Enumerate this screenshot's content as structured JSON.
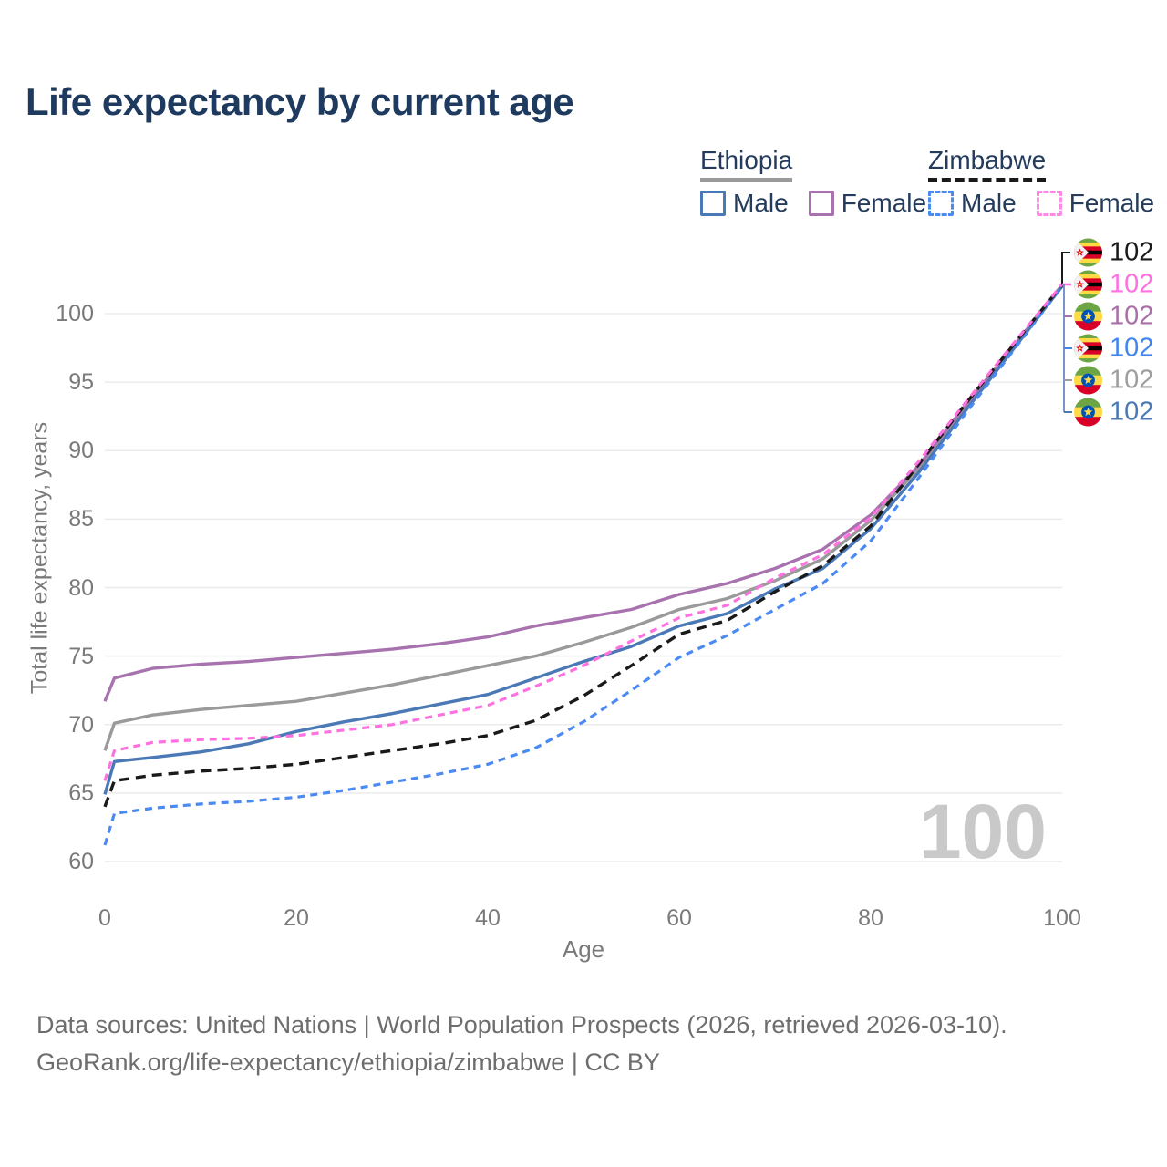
{
  "title": "Life expectancy by current age",
  "legend": {
    "groups": [
      {
        "label": "Ethiopia",
        "line_style": "solid",
        "line_color": "#9a9a9a",
        "items": [
          {
            "label": "Male",
            "color": "#4a79b5",
            "dashed": false
          },
          {
            "label": "Female",
            "color": "#a872ae",
            "dashed": false
          }
        ]
      },
      {
        "label": "Zimbabwe",
        "line_style": "dashed",
        "line_color": "#1a1a1a",
        "items": [
          {
            "label": "Male",
            "color": "#4b8af2",
            "dashed": true
          },
          {
            "label": "Female",
            "color": "#ff8ae3",
            "dashed": true
          }
        ]
      }
    ]
  },
  "chart_data": {
    "type": "line",
    "title": "Life expectancy by current age",
    "xlabel": "Age",
    "ylabel": "Total life expectancy, years",
    "xlim": [
      0,
      100
    ],
    "ylim": [
      60,
      100
    ],
    "x_ticks": [
      0,
      20,
      40,
      60,
      80,
      100
    ],
    "y_ticks": [
      60,
      65,
      70,
      75,
      80,
      85,
      90,
      95,
      100
    ],
    "grid": "horizontal",
    "legend_position": "top-right",
    "x": [
      0,
      1,
      5,
      10,
      15,
      20,
      25,
      30,
      35,
      40,
      45,
      50,
      55,
      60,
      65,
      70,
      75,
      80,
      85,
      90,
      95,
      100
    ],
    "series": [
      {
        "name": "Ethiopia (both sexes)",
        "country": "ethiopia",
        "sex": "all",
        "color": "#9a9a9a",
        "dash": null,
        "width": 3.4,
        "values": [
          68.1,
          70.1,
          70.7,
          71.1,
          71.4,
          71.7,
          72.3,
          72.9,
          73.6,
          74.3,
          75.0,
          76.0,
          77.1,
          78.4,
          79.2,
          80.5,
          82.1,
          84.9,
          88.7,
          93.2,
          97.6,
          102.05
        ]
      },
      {
        "name": "Ethiopia Female",
        "country": "ethiopia",
        "sex": "female",
        "color": "#a872ae",
        "dash": null,
        "width": 3.4,
        "values": [
          71.7,
          73.4,
          74.1,
          74.4,
          74.6,
          74.9,
          75.2,
          75.5,
          75.9,
          76.4,
          77.2,
          77.8,
          78.4,
          79.5,
          80.3,
          81.4,
          82.8,
          85.3,
          88.9,
          93.4,
          97.7,
          102.1
        ]
      },
      {
        "name": "Ethiopia Male",
        "country": "ethiopia",
        "sex": "male",
        "color": "#4a79b5",
        "dash": null,
        "width": 3.4,
        "values": [
          64.9,
          67.3,
          67.6,
          68.0,
          68.6,
          69.5,
          70.2,
          70.8,
          71.5,
          72.2,
          73.4,
          74.6,
          75.7,
          77.2,
          78.1,
          79.9,
          81.4,
          84.3,
          88.4,
          93.0,
          97.5,
          102.0
        ]
      },
      {
        "name": "Zimbabwe Male",
        "country": "zimbabwe",
        "sex": "male",
        "color": "#4b8af2",
        "dash": "8 6",
        "width": 3.2,
        "values": [
          61.2,
          63.5,
          63.9,
          64.2,
          64.4,
          64.7,
          65.2,
          65.8,
          66.4,
          67.1,
          68.3,
          70.2,
          72.5,
          74.9,
          76.5,
          78.4,
          80.3,
          83.4,
          88.0,
          92.8,
          97.4,
          102.0
        ]
      },
      {
        "name": "Zimbabwe (both sexes)",
        "country": "zimbabwe",
        "sex": "all",
        "color": "#1a1a1a",
        "dash": "11 7",
        "width": 3.4,
        "values": [
          64.0,
          65.9,
          66.3,
          66.6,
          66.8,
          67.1,
          67.6,
          68.1,
          68.6,
          69.2,
          70.3,
          72.1,
          74.3,
          76.6,
          77.6,
          79.7,
          81.6,
          84.5,
          89.0,
          93.5,
          97.8,
          102.1
        ]
      },
      {
        "name": "Zimbabwe Female",
        "country": "zimbabwe",
        "sex": "female",
        "color": "#ff70e0",
        "dash": "8 6",
        "width": 3.2,
        "values": [
          65.9,
          68.1,
          68.7,
          68.9,
          69.0,
          69.2,
          69.6,
          70.0,
          70.7,
          71.4,
          72.8,
          74.3,
          76.1,
          77.8,
          78.7,
          80.7,
          82.4,
          85.1,
          89.2,
          93.6,
          97.9,
          102.15
        ]
      }
    ]
  },
  "end_labels": [
    {
      "flag": "zimbabwe",
      "value": "102",
      "color": "#1a1a1a"
    },
    {
      "flag": "zimbabwe",
      "value": "102",
      "color": "#ff70e0"
    },
    {
      "flag": "ethiopia",
      "value": "102",
      "color": "#a96fa9"
    },
    {
      "flag": "zimbabwe",
      "value": "102",
      "color": "#4186f0"
    },
    {
      "flag": "ethiopia",
      "value": "102",
      "color": "#9e9e9e"
    },
    {
      "flag": "ethiopia",
      "value": "102",
      "color": "#4a79b5"
    }
  ],
  "watermark": "100",
  "footer": {
    "line1": "Data sources: United Nations | World Population Prospects (2026, retrieved 2026-03-10).",
    "line2": "GeoRank.org/life-expectancy/ethiopia/zimbabwe | CC BY"
  }
}
